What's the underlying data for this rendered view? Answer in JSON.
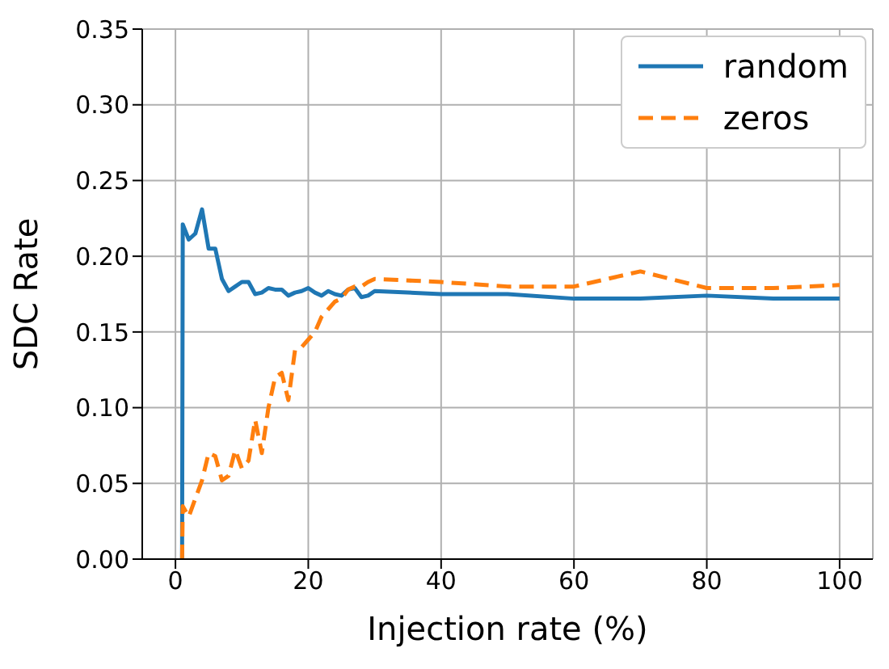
{
  "chart_data": {
    "type": "line",
    "xlabel": "Injection rate (%)",
    "ylabel": "SDC Rate",
    "xlim": [
      -5,
      105
    ],
    "xticks": [
      0,
      20,
      40,
      60,
      80,
      100
    ],
    "ylim": [
      0,
      0.35
    ],
    "yticks": [
      {
        "value": 0,
        "label": "0.00"
      },
      {
        "value": 0.05,
        "label": "0.05"
      },
      {
        "value": 0.1,
        "label": "0.10"
      },
      {
        "value": 0.15,
        "label": "0.15"
      },
      {
        "value": 0.2,
        "label": "0.20"
      },
      {
        "value": 0.25,
        "label": "0.25"
      },
      {
        "value": 0.3,
        "label": "0.30"
      },
      {
        "value": 0.35,
        "label": "0.35"
      }
    ],
    "grid": true,
    "legend": "top right",
    "marker": "none",
    "series": [
      {
        "name": "random",
        "color": "#1f77b4",
        "line_style": "solid",
        "x": [
          1,
          1.1,
          2,
          3,
          4,
          5,
          6,
          7,
          8,
          9,
          10,
          11,
          12,
          13,
          14,
          15,
          16,
          17,
          18,
          19,
          20,
          21,
          22,
          23,
          24,
          25,
          26,
          27,
          28,
          29,
          30,
          40,
          50,
          60,
          70,
          80,
          90,
          100
        ],
        "values": [
          0,
          0.221,
          0.211,
          0.215,
          0.231,
          0.205,
          0.205,
          0.185,
          0.177,
          0.18,
          0.183,
          0.183,
          0.175,
          0.176,
          0.179,
          0.178,
          0.178,
          0.174,
          0.176,
          0.177,
          0.179,
          0.176,
          0.174,
          0.177,
          0.175,
          0.174,
          0.178,
          0.179,
          0.173,
          0.174,
          0.177,
          0.175,
          0.175,
          0.172,
          0.172,
          0.174,
          0.172,
          0.172
        ]
      },
      {
        "name": "zeros",
        "color": "#ff7f0e",
        "line_style": "dashed",
        "x": [
          1,
          1.1,
          2,
          3,
          4,
          5,
          6,
          7,
          8,
          9,
          10,
          11,
          12,
          13,
          14,
          15,
          16,
          17,
          18,
          19,
          20,
          21,
          22,
          23,
          24,
          25,
          26,
          27,
          28,
          29,
          30,
          40,
          50,
          60,
          70,
          80,
          90,
          100
        ],
        "values": [
          0,
          0.035,
          0.028,
          0.04,
          0.052,
          0.07,
          0.068,
          0.052,
          0.055,
          0.072,
          0.06,
          0.065,
          0.092,
          0.07,
          0.1,
          0.12,
          0.123,
          0.105,
          0.138,
          0.14,
          0.145,
          0.15,
          0.16,
          0.165,
          0.17,
          0.172,
          0.178,
          0.18,
          0.18,
          0.183,
          0.185,
          0.183,
          0.18,
          0.18,
          0.19,
          0.179,
          0.179,
          0.181
        ]
      }
    ]
  }
}
